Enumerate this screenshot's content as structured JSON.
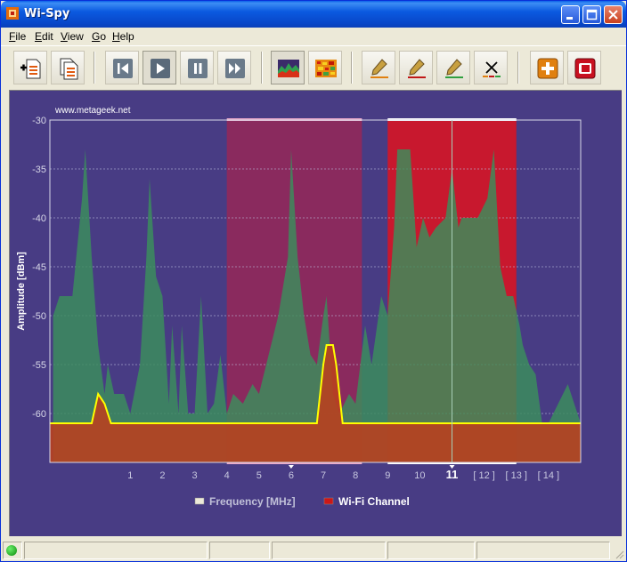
{
  "window": {
    "title": "Wi-Spy"
  },
  "menu": {
    "items": [
      {
        "label": "File",
        "accel": "F",
        "rest": "ile"
      },
      {
        "label": "Edit",
        "accel": "E",
        "rest": "dit"
      },
      {
        "label": "View",
        "accel": "V",
        "rest": "iew"
      },
      {
        "label": "Go",
        "accel": "G",
        "rest": "o"
      },
      {
        "label": "Help",
        "accel": "H",
        "rest": "elp"
      }
    ]
  },
  "toolbar": {
    "buttons": [
      {
        "name": "new-document",
        "icon": "new-document-icon"
      },
      {
        "name": "copy-document",
        "icon": "copy-document-icon"
      },
      {
        "name": "skip-back",
        "icon": "skip-back-icon"
      },
      {
        "name": "play",
        "icon": "play-icon"
      },
      {
        "name": "pause",
        "icon": "pause-icon"
      },
      {
        "name": "fast-forward",
        "icon": "fast-forward-icon"
      },
      {
        "name": "spectrum-view",
        "icon": "spectrum-graph-icon"
      },
      {
        "name": "density-view",
        "icon": "density-map-icon"
      },
      {
        "name": "pen-orange",
        "icon": "pen-orange-icon"
      },
      {
        "name": "pen-red",
        "icon": "pen-red-icon"
      },
      {
        "name": "pen-green",
        "icon": "pen-green-icon"
      },
      {
        "name": "clear-traces",
        "icon": "clear-x-icon"
      },
      {
        "name": "add-marker",
        "icon": "add-plus-icon"
      },
      {
        "name": "record",
        "icon": "record-icon"
      }
    ]
  },
  "colors": {
    "background": "#483c84",
    "green_trace": "#3a8f5c",
    "current_trace": "#ffff00",
    "floor": "#b8401f",
    "channel_6_band": "#8a2a5e",
    "channel_11_band": "#c8182e"
  },
  "chart_data": {
    "type": "area",
    "watermark": "www.metageek.net",
    "ylabel": "Amplitude [dBm]",
    "ylim": [
      -65,
      -30
    ],
    "yticks": [
      -30,
      -35,
      -40,
      -45,
      -50,
      -55,
      -60
    ],
    "x_ticks": [
      "1",
      "2",
      "3",
      "4",
      "5",
      "6",
      "7",
      "8",
      "9",
      "10",
      "11",
      "[ 12 ]",
      "[ 13 ]",
      "[ 14 ]"
    ],
    "x_tick_positions": [
      1,
      2,
      3,
      4,
      5,
      6,
      7,
      8,
      9,
      10,
      11,
      12,
      13,
      14
    ],
    "selected_channel": "11",
    "xlim": [
      -1.5,
      15
    ],
    "legend": [
      {
        "label": "Frequency [MHz]",
        "color": "#ece9d8"
      },
      {
        "label": "Wi-Fi Channel",
        "color": "#cc1818"
      }
    ],
    "highlighted_channels": [
      {
        "channel": 6,
        "from": 4,
        "to": 8.2
      },
      {
        "channel": 11,
        "from": 9,
        "to": 13
      }
    ],
    "series": [
      {
        "name": "Max",
        "points": [
          [
            -1.4,
            -50
          ],
          [
            -1.2,
            -48
          ],
          [
            -0.8,
            -48
          ],
          [
            -0.5,
            -38
          ],
          [
            -0.4,
            -33
          ],
          [
            -0.2,
            -44
          ],
          [
            0,
            -53
          ],
          [
            0.2,
            -58
          ],
          [
            0.3,
            -55
          ],
          [
            0.5,
            -58
          ],
          [
            0.8,
            -58
          ],
          [
            1,
            -60
          ],
          [
            1.3,
            -55
          ],
          [
            1.5,
            -44
          ],
          [
            1.6,
            -36
          ],
          [
            1.8,
            -46
          ],
          [
            2,
            -48
          ],
          [
            2.2,
            -59
          ],
          [
            2.3,
            -51
          ],
          [
            2.5,
            -60
          ],
          [
            2.6,
            -51
          ],
          [
            2.8,
            -60
          ],
          [
            3,
            -60
          ],
          [
            3.2,
            -48
          ],
          [
            3.4,
            -60
          ],
          [
            3.6,
            -59
          ],
          [
            3.8,
            -54
          ],
          [
            4,
            -60
          ],
          [
            4.2,
            -58
          ],
          [
            4.5,
            -59
          ],
          [
            4.8,
            -57
          ],
          [
            5,
            -58
          ],
          [
            5.3,
            -54
          ],
          [
            5.6,
            -50
          ],
          [
            5.9,
            -44
          ],
          [
            6,
            -33
          ],
          [
            6.2,
            -44
          ],
          [
            6.4,
            -50
          ],
          [
            6.6,
            -54
          ],
          [
            6.8,
            -55
          ],
          [
            7,
            -50
          ],
          [
            7.1,
            -48
          ],
          [
            7.3,
            -58
          ],
          [
            7.5,
            -60
          ],
          [
            7.8,
            -58
          ],
          [
            8,
            -59
          ],
          [
            8.3,
            -51
          ],
          [
            8.5,
            -55
          ],
          [
            8.8,
            -48
          ],
          [
            9,
            -50
          ],
          [
            9.2,
            -41
          ],
          [
            9.3,
            -33
          ],
          [
            9.7,
            -33
          ],
          [
            9.9,
            -43
          ],
          [
            10.1,
            -40
          ],
          [
            10.3,
            -42
          ],
          [
            10.5,
            -41
          ],
          [
            10.8,
            -40
          ],
          [
            11,
            -35
          ],
          [
            11.2,
            -41
          ],
          [
            11.3,
            -40
          ],
          [
            11.8,
            -40
          ],
          [
            12.1,
            -38
          ],
          [
            12.3,
            -33
          ],
          [
            12.5,
            -45
          ],
          [
            12.7,
            -48
          ],
          [
            12.9,
            -48
          ],
          [
            13.1,
            -51
          ],
          [
            13.2,
            -53
          ],
          [
            13.4,
            -55
          ],
          [
            13.6,
            -56
          ],
          [
            13.8,
            -61
          ],
          [
            14,
            -61
          ],
          [
            14.3,
            -59
          ],
          [
            14.6,
            -57
          ],
          [
            15,
            -61
          ]
        ]
      },
      {
        "name": "Current",
        "points": [
          [
            -1.5,
            -61
          ],
          [
            -0.2,
            -61
          ],
          [
            0,
            -58
          ],
          [
            0.2,
            -59
          ],
          [
            0.4,
            -61
          ],
          [
            3,
            -61
          ],
          [
            6.8,
            -61
          ],
          [
            7,
            -55
          ],
          [
            7.1,
            -53
          ],
          [
            7.3,
            -53
          ],
          [
            7.4,
            -55
          ],
          [
            7.6,
            -61
          ],
          [
            15,
            -61
          ]
        ]
      }
    ]
  }
}
